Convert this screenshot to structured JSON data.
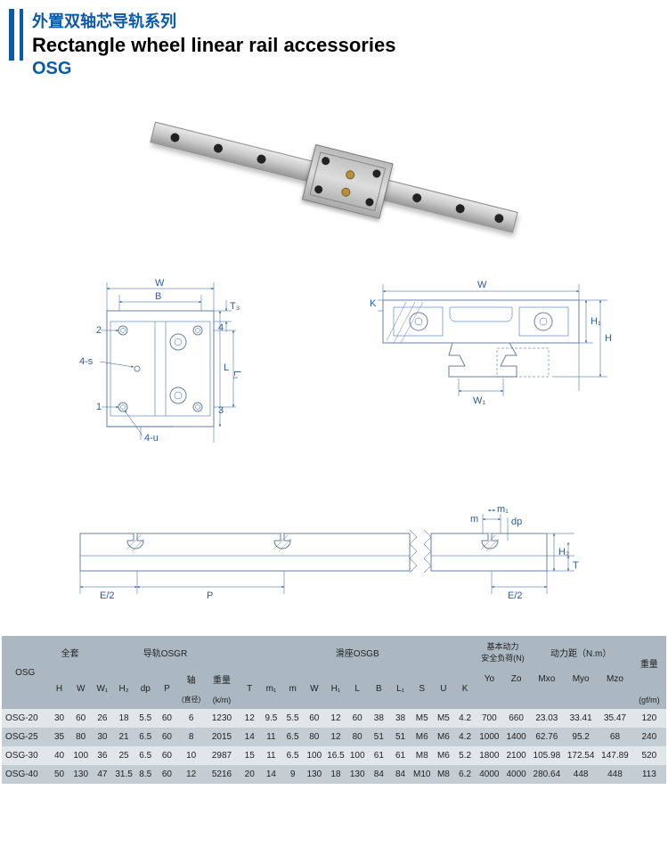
{
  "header": {
    "title_cn": "外置双轴芯导轨系列",
    "title_en": "Rectangle wheel linear rail accessories",
    "code": "OSG"
  },
  "diagram_labels": {
    "top_left": {
      "W": "W",
      "B": "B",
      "T3": "T₃",
      "L": "L",
      "L1": "L₁",
      "n1": "1",
      "n2": "2",
      "n3": "3",
      "n4": "4",
      "4s": "4-s",
      "4u": "4-u"
    },
    "top_right": {
      "W": "W",
      "W1": "W₁",
      "H": "H",
      "H1": "H₁",
      "K": "K"
    },
    "bottom": {
      "E2a": "E/2",
      "E2b": "E/2",
      "P": "P",
      "m": "m",
      "m1": "m₁",
      "dp": "dp",
      "H2": "H₂",
      "T": "T"
    }
  },
  "table": {
    "group_labels": {
      "full_set": "全套",
      "rail": "导轨OSGR",
      "block": "滑座OSGB",
      "load": "基本动力\n安全负荷(N)",
      "torque": "动力距（N.m）"
    },
    "model_header": "OSG",
    "columns": [
      "H",
      "W",
      "W₁",
      "H₂",
      "dp",
      "P",
      "轴",
      "重量",
      "T",
      "m₁",
      "m",
      "W",
      "H₁",
      "L",
      "B",
      "L₁",
      "S",
      "U",
      "K",
      "Yo",
      "Zo",
      "Mxo",
      "Myo",
      "Mzo",
      "重量"
    ],
    "sub_labels": {
      "axle_note": "(直径)",
      "weight1_unit": "(k/m)",
      "weight2_unit": "(gf/m)"
    },
    "rows": [
      [
        "OSG-20",
        "30",
        "60",
        "26",
        "18",
        "5.5",
        "60",
        "6",
        "1230",
        "12",
        "9.5",
        "5.5",
        "60",
        "12",
        "60",
        "38",
        "38",
        "M5",
        "M5",
        "4.2",
        "700",
        "660",
        "23.03",
        "33.41",
        "35.47",
        "120"
      ],
      [
        "OSG-25",
        "35",
        "80",
        "30",
        "21",
        "6.5",
        "60",
        "8",
        "2015",
        "14",
        "11",
        "6.5",
        "80",
        "12",
        "80",
        "51",
        "51",
        "M6",
        "M6",
        "4.2",
        "1000",
        "1400",
        "62.76",
        "95.2",
        "68",
        "240"
      ],
      [
        "OSG-30",
        "40",
        "100",
        "36",
        "25",
        "6.5",
        "60",
        "10",
        "2987",
        "15",
        "11",
        "6.5",
        "100",
        "16.5",
        "100",
        "61",
        "61",
        "M8",
        "M6",
        "5.2",
        "1800",
        "2100",
        "105.98",
        "172.54",
        "147.89",
        "520"
      ],
      [
        "OSG-40",
        "50",
        "130",
        "47",
        "31.5",
        "8.5",
        "60",
        "12",
        "5216",
        "20",
        "14",
        "9",
        "130",
        "18",
        "130",
        "84",
        "84",
        "M10",
        "M8",
        "6.2",
        "4000",
        "4000",
        "280.64",
        "448",
        "448",
        "113"
      ]
    ]
  },
  "style": {
    "accent": "#0a5aa6",
    "header_bg": "#abb7c1",
    "row_odd": "#e1e6e9",
    "row_even": "#c4cdd3",
    "dim_line": "#295ca0"
  }
}
